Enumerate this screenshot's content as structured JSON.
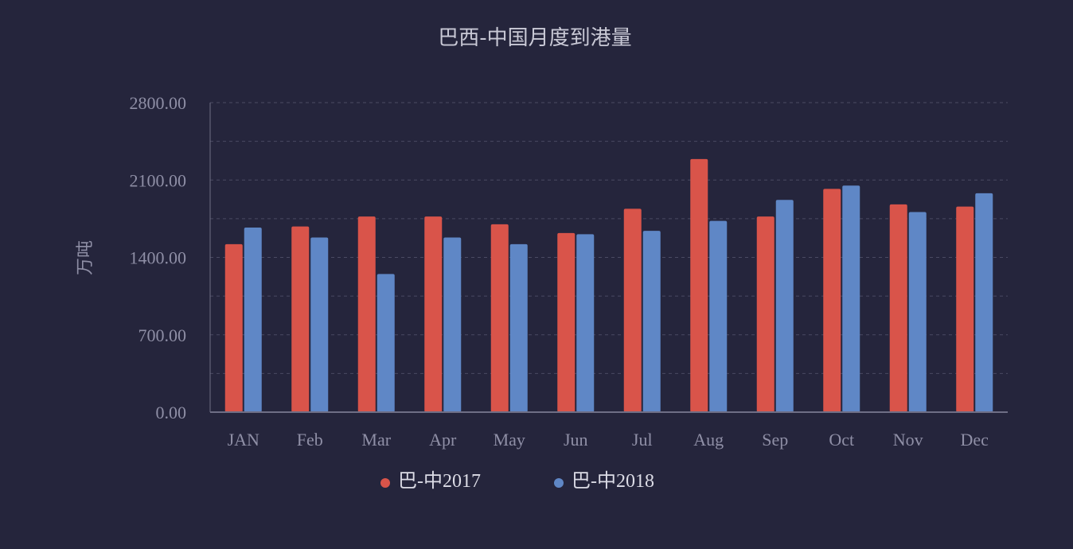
{
  "chart_data": {
    "type": "bar",
    "title": "巴西-中国月度到港量",
    "xlabel": "",
    "ylabel": "万吨",
    "categories": [
      "JAN",
      "Feb",
      "Mar",
      "Apr",
      "May",
      "Jun",
      "Jul",
      "Aug",
      "Sep",
      "Oct",
      "Nov",
      "Dec"
    ],
    "series": [
      {
        "name": "巴-中2017",
        "color": "#d9544a",
        "values": [
          1520,
          1680,
          1770,
          1770,
          1700,
          1620,
          1840,
          2290,
          1770,
          2020,
          1880,
          1860
        ]
      },
      {
        "name": "巴-中2018",
        "color": "#5f87c6",
        "values": [
          1670,
          1580,
          1250,
          1580,
          1520,
          1610,
          1640,
          1730,
          1920,
          2050,
          1810,
          1980
        ]
      }
    ],
    "ylim": [
      0,
      2800
    ],
    "yticks": [
      "0.00",
      "700.00",
      "1400.00",
      "2100.00",
      "2800.00"
    ],
    "ytick_values": [
      0,
      700,
      1400,
      2100,
      2800
    ],
    "minor_grid_values": [
      350,
      1050,
      1750,
      2450
    ],
    "grid": true,
    "legend_position": "bottom-center"
  },
  "colors": {
    "background": "#25253c",
    "axis": "#6e6e85",
    "grid": "#4a4a62"
  }
}
